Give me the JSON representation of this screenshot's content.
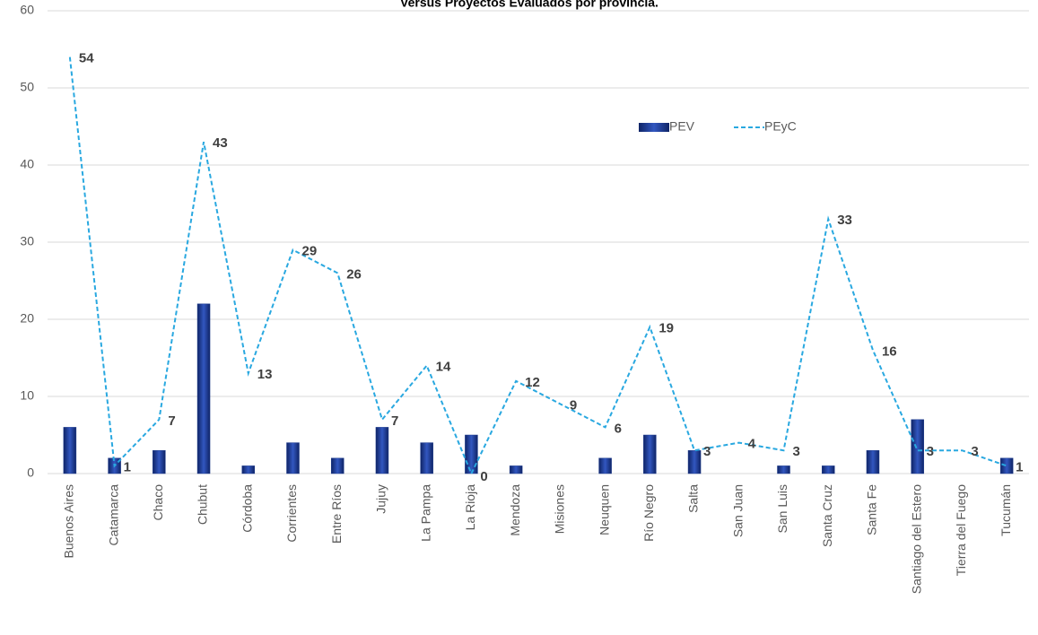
{
  "chart_data": {
    "type": "bar_line",
    "title": "Versus Proyectos Evaluados por provincia.",
    "categories": [
      "Buenos Aires",
      "Catamarca",
      "Chaco",
      "Chubut",
      "Córdoba",
      "Corrientes",
      "Entre Ríos",
      "Jujuy",
      "La Pampa",
      "La Rioja",
      "Mendoza",
      "Misiones",
      "Neuquen",
      "Río Negro",
      "Salta",
      "San Juan",
      "San Luis",
      "Santa Cruz",
      "Santa Fe",
      "Santiago del Estero",
      "Tierra del Fuego",
      "Tucumán"
    ],
    "series": [
      {
        "name": "PEV",
        "type": "bar",
        "color": "#1f3d8f",
        "values": [
          6,
          2,
          3,
          22,
          1,
          4,
          2,
          6,
          4,
          5,
          1,
          0,
          2,
          5,
          3,
          0,
          1,
          1,
          3,
          7,
          0,
          2
        ]
      },
      {
        "name": "PEyC",
        "type": "line",
        "color": "#29a8e0",
        "dashed": true,
        "data_labels": true,
        "values": [
          54,
          1,
          7,
          43,
          13,
          29,
          26,
          7,
          14,
          0,
          12,
          9,
          6,
          19,
          3,
          4,
          3,
          33,
          16,
          3,
          3,
          1
        ]
      }
    ],
    "ylim": [
      0,
      60
    ],
    "yticks": [
      0,
      10,
      20,
      30,
      40,
      50,
      60
    ],
    "grid": true,
    "legend": "upper right"
  }
}
